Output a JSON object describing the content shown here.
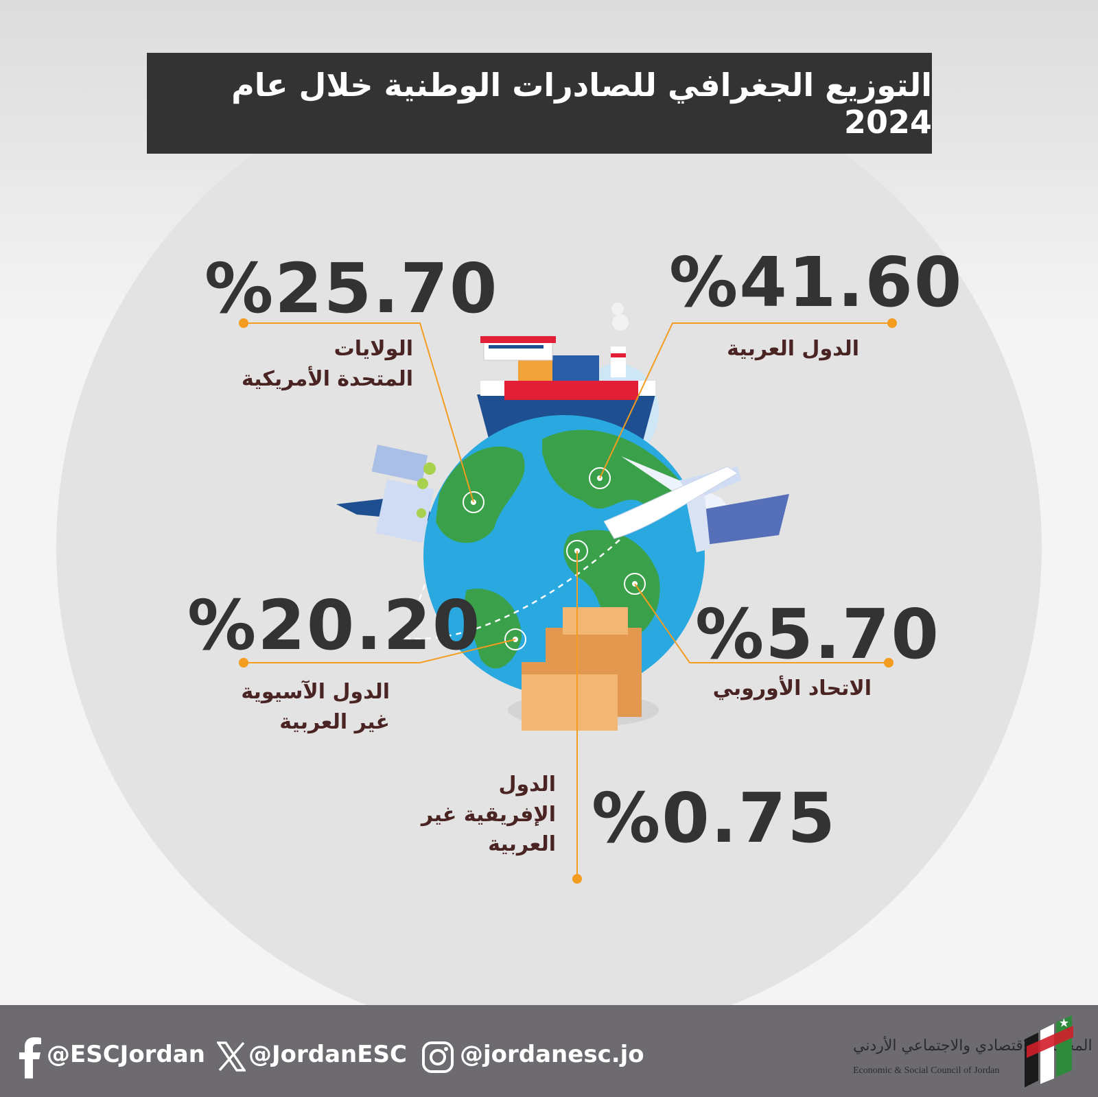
{
  "title": "التوزيع الجغرافي للصادرات الوطنية خلال عام 2024",
  "regions": [
    {
      "value": "%41.60",
      "label_lines": [
        "الدول العربية"
      ]
    },
    {
      "value": "%25.70",
      "label_lines": [
        "الولايات",
        "المتحدة الأمريكية"
      ]
    },
    {
      "value": "%20.20",
      "label_lines": [
        "الدول الآسيوية",
        "غير العربية"
      ]
    },
    {
      "value": "%5.70",
      "label_lines": [
        "الاتحاد الأوروبي"
      ]
    },
    {
      "value": "%0.75",
      "label_lines": [
        "الدول",
        "الإفريقية غير",
        "العربية"
      ]
    }
  ],
  "social": {
    "facebook": "@ESCJordan",
    "x": "@JordanESC",
    "instagram": "@jordanesc.jo"
  },
  "logo": {
    "name_ar": "المجلس الاقتصادي والاجتماعي الأردني",
    "name_en": "Economic & Social Council of Jordan"
  },
  "colors": {
    "title_bg": "#333333",
    "accent": "#f39c1f",
    "value_text": "#333333",
    "label_text": "#4a2323",
    "footer_bg": "#6e6b70"
  }
}
